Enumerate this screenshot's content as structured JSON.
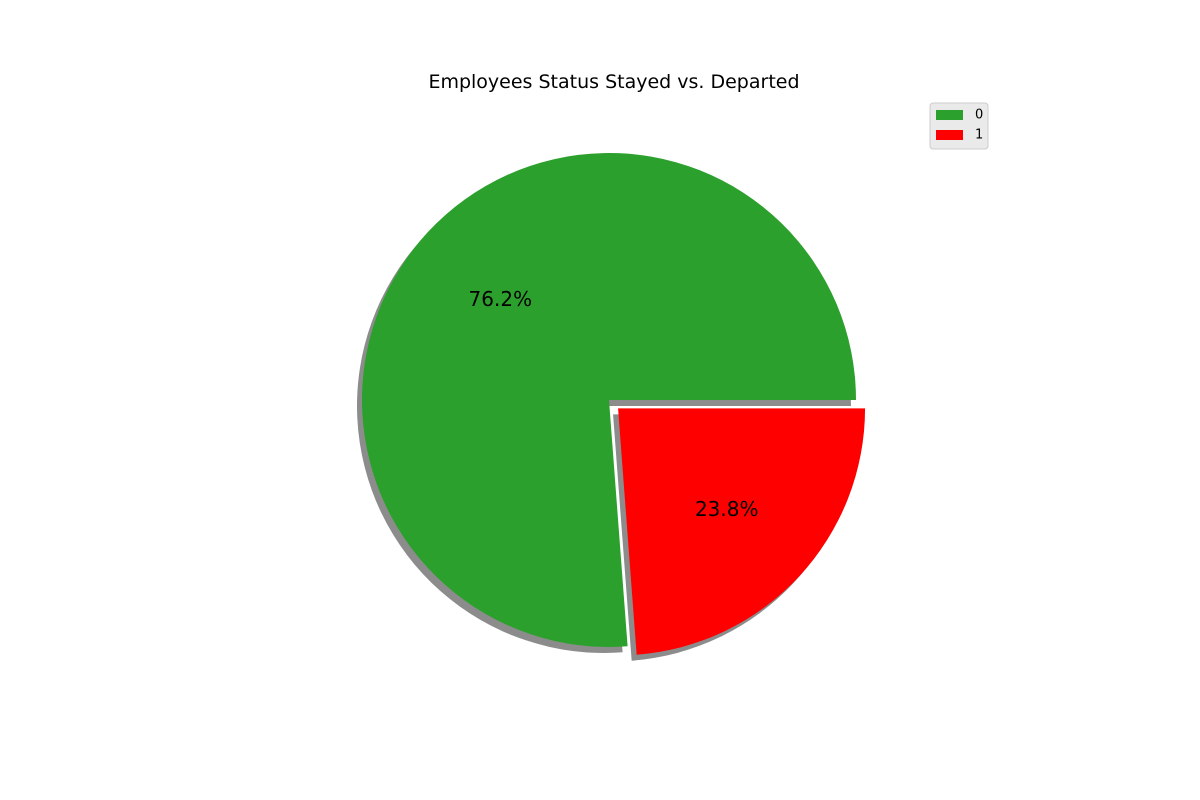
{
  "chart_data": {
    "type": "pie",
    "title": "Employees Status Stayed vs. Departed",
    "slices": [
      {
        "label": "0",
        "value": 76.2,
        "display": "76.2%",
        "color": "#2ca02c",
        "explode": 0
      },
      {
        "label": "1",
        "value": 23.8,
        "display": "23.8%",
        "color": "#ff0000",
        "explode": 0.05
      }
    ],
    "start_angle": 0,
    "direction": "counterclockwise",
    "shadow": true,
    "legend": {
      "placement": "top-right",
      "entries": [
        "0",
        "1"
      ]
    }
  }
}
